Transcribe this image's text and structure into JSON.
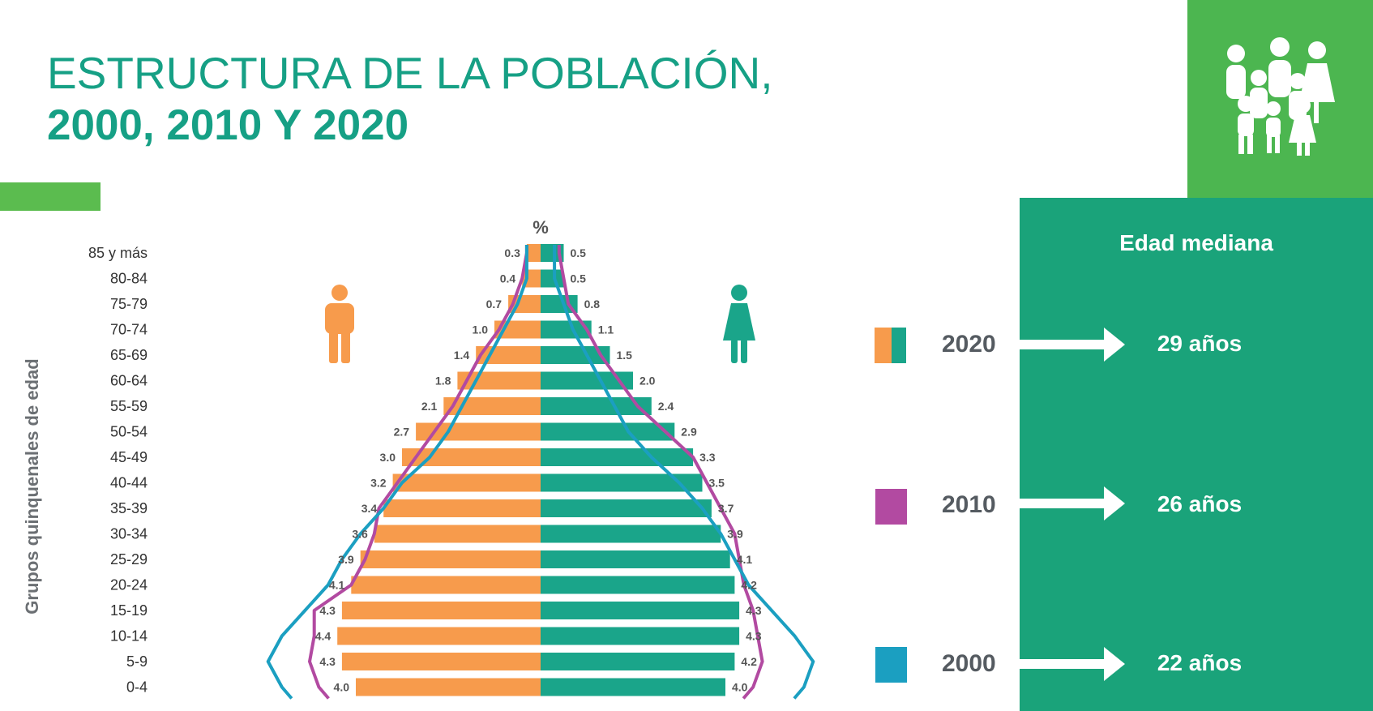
{
  "title": {
    "line1": "ESTRUCTURA DE LA  POBLACIÓN,",
    "line2": "2000, 2010 Y 2020"
  },
  "chart_data": {
    "type": "bar",
    "subtype": "population-pyramid",
    "unit_label": "%",
    "ylabel": "Grupos quinquenales de edad",
    "categories": [
      "85 y más",
      "80-84",
      "75-79",
      "70-74",
      "65-69",
      "60-64",
      "55-59",
      "50-54",
      "45-49",
      "40-44",
      "35-39",
      "30-34",
      "25-29",
      "20-24",
      "15-19",
      "10-14",
      "5-9",
      "0-4"
    ],
    "series": [
      {
        "color": "#f79b4c",
        "side": "left",
        "values": [
          0.3,
          0.4,
          0.7,
          1.0,
          1.4,
          1.8,
          2.1,
          2.7,
          3.0,
          3.2,
          3.4,
          3.6,
          3.9,
          4.1,
          4.3,
          4.4,
          4.3,
          4.0
        ],
        "labels": [
          "0.3",
          "0.4",
          "0.7",
          "1.0",
          "1.4",
          "1.8",
          "2.1",
          "2.7",
          "3.0",
          "3.2",
          "3.4",
          "3.6",
          "3.9",
          "4.1",
          "4.3",
          "4.4",
          "4.3",
          "4.0"
        ]
      },
      {
        "color": "#1aa58a",
        "side": "right",
        "values": [
          0.5,
          0.5,
          0.8,
          1.1,
          1.5,
          2.0,
          2.4,
          2.9,
          3.3,
          3.5,
          3.7,
          3.9,
          4.1,
          4.2,
          4.3,
          4.3,
          4.2,
          4.0
        ],
        "labels": [
          "0.5",
          "0.5",
          "0.8",
          "1.1",
          "1.5",
          "2.0",
          "2.4",
          "2.9",
          "3.3",
          "3.5",
          "3.7",
          "3.9",
          "4.1",
          "4.2",
          "4.3",
          "4.3",
          "4.2",
          "4.0"
        ]
      }
    ],
    "outline_series": [
      {
        "color": "#b24aa1",
        "left": [
          0.3,
          0.4,
          0.6,
          0.9,
          1.3,
          1.6,
          1.9,
          2.3,
          2.7,
          3.1,
          3.5,
          3.6,
          3.8,
          4.1,
          4.9,
          4.9,
          5.0,
          4.8
        ],
        "right": [
          0.4,
          0.5,
          0.6,
          1.0,
          1.3,
          1.7,
          2.1,
          2.7,
          3.3,
          3.6,
          3.9,
          4.2,
          4.3,
          4.4,
          4.6,
          4.7,
          4.8,
          4.6
        ]
      },
      {
        "color": "#1b9fc1",
        "left": [
          0.3,
          0.3,
          0.5,
          0.8,
          1.1,
          1.4,
          1.7,
          2.0,
          2.4,
          3.0,
          3.4,
          3.9,
          4.3,
          4.6,
          5.1,
          5.6,
          5.9,
          5.6
        ]
      },
      {
        "color": "#1b9fc1",
        "right": [
          0.3,
          0.3,
          0.5,
          0.7,
          1.0,
          1.3,
          1.6,
          1.9,
          2.4,
          3.0,
          3.5,
          3.9,
          4.2,
          4.5,
          5.0,
          5.5,
          5.9,
          5.7
        ]
      }
    ],
    "xlim": [
      -6,
      6
    ],
    "grid": false
  },
  "legend": {
    "title": "Edad mediana",
    "items": [
      {
        "year": "2020",
        "median": "29 años",
        "colors": [
          "#f79b4c",
          "#1aa58a"
        ]
      },
      {
        "year": "2010",
        "median": "26 años",
        "colors": [
          "#b24aa1"
        ]
      },
      {
        "year": "2000",
        "median": "22 años",
        "colors": [
          "#1b9fc1"
        ]
      }
    ]
  },
  "icons": {
    "male": "male-person-icon",
    "female": "female-person-icon",
    "family": "family-group-icon",
    "male_color": "#f79b4c",
    "female_color": "#1aa58a"
  }
}
